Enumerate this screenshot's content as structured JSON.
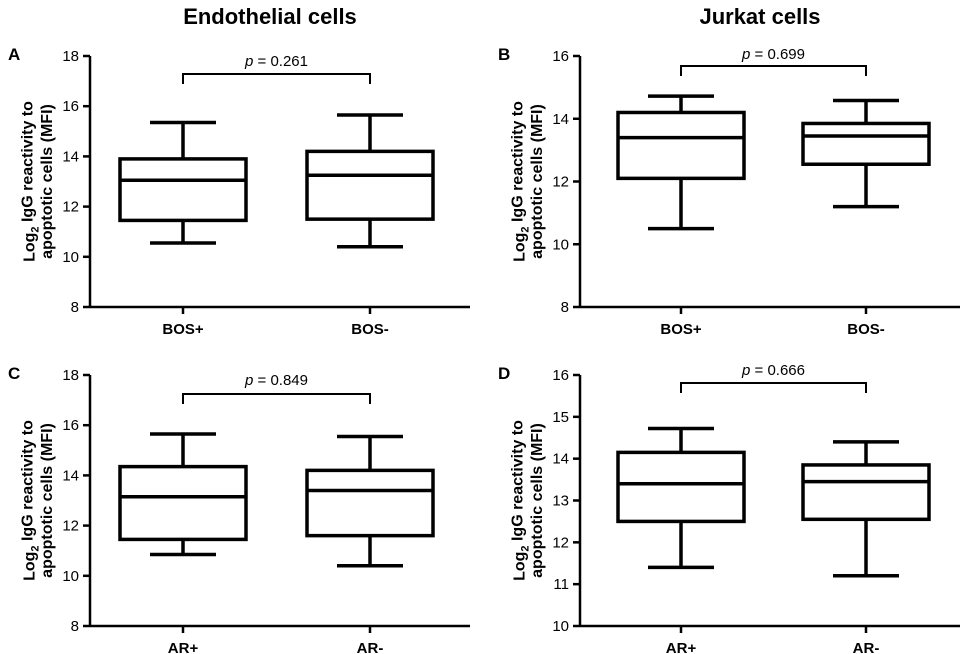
{
  "column_titles": [
    "Endothelial cells",
    "Jurkat cells"
  ],
  "chart_data": [
    {
      "type": "box",
      "panel_label": "A",
      "xlabel": "",
      "ylabel_parts": [
        "Log",
        "2",
        " IgG reactivity to",
        "apoptotic cells (MFI)"
      ],
      "ylim": [
        8,
        18
      ],
      "yticks": [
        8,
        10,
        12,
        14,
        16,
        18
      ],
      "categories": [
        "BOS+",
        "BOS-"
      ],
      "boxes": [
        {
          "min": 10.55,
          "q1": 11.45,
          "median": 13.05,
          "q3": 13.9,
          "max": 15.35
        },
        {
          "min": 10.4,
          "q1": 11.5,
          "median": 13.25,
          "q3": 14.2,
          "max": 15.65
        }
      ],
      "annotation": {
        "p_symbol": "p",
        "p_text": " = 0.261"
      }
    },
    {
      "type": "box",
      "panel_label": "B",
      "xlabel": "",
      "ylabel_parts": [
        "Log",
        "2",
        " IgG reactivity to",
        "apoptotic cells (MFI)"
      ],
      "ylim": [
        8,
        16
      ],
      "yticks": [
        8,
        10,
        12,
        14,
        16
      ],
      "categories": [
        "BOS+",
        "BOS-"
      ],
      "boxes": [
        {
          "min": 10.5,
          "q1": 12.1,
          "median": 13.4,
          "q3": 14.2,
          "max": 14.72
        },
        {
          "min": 11.2,
          "q1": 12.55,
          "median": 13.45,
          "q3": 13.85,
          "max": 14.58
        }
      ],
      "annotation": {
        "p_symbol": "p",
        "p_text": " = 0.699"
      }
    },
    {
      "type": "box",
      "panel_label": "C",
      "xlabel": "",
      "ylabel_parts": [
        "Log",
        "2",
        " IgG reactivity to",
        "apoptotic cells (MFI)"
      ],
      "ylim": [
        8,
        18
      ],
      "yticks": [
        8,
        10,
        12,
        14,
        16,
        18
      ],
      "categories": [
        "AR+",
        "AR-"
      ],
      "boxes": [
        {
          "min": 10.85,
          "q1": 11.45,
          "median": 13.15,
          "q3": 14.35,
          "max": 15.65
        },
        {
          "min": 10.4,
          "q1": 11.6,
          "median": 13.4,
          "q3": 14.2,
          "max": 15.55
        }
      ],
      "annotation": {
        "p_symbol": "p",
        "p_text": " = 0.849"
      }
    },
    {
      "type": "box",
      "panel_label": "D",
      "xlabel": "",
      "ylabel_parts": [
        "Log",
        "2",
        " IgG reactivity to",
        "apoptotic cells (MFI)"
      ],
      "ylim": [
        10,
        16
      ],
      "yticks": [
        10,
        11,
        12,
        13,
        14,
        15,
        16
      ],
      "categories": [
        "AR+",
        "AR-"
      ],
      "boxes": [
        {
          "min": 11.4,
          "q1": 12.5,
          "median": 13.4,
          "q3": 14.15,
          "max": 14.72
        },
        {
          "min": 11.2,
          "q1": 12.55,
          "median": 13.45,
          "q3": 13.85,
          "max": 14.4
        }
      ],
      "annotation": {
        "p_symbol": "p",
        "p_text": " = 0.666"
      }
    }
  ]
}
